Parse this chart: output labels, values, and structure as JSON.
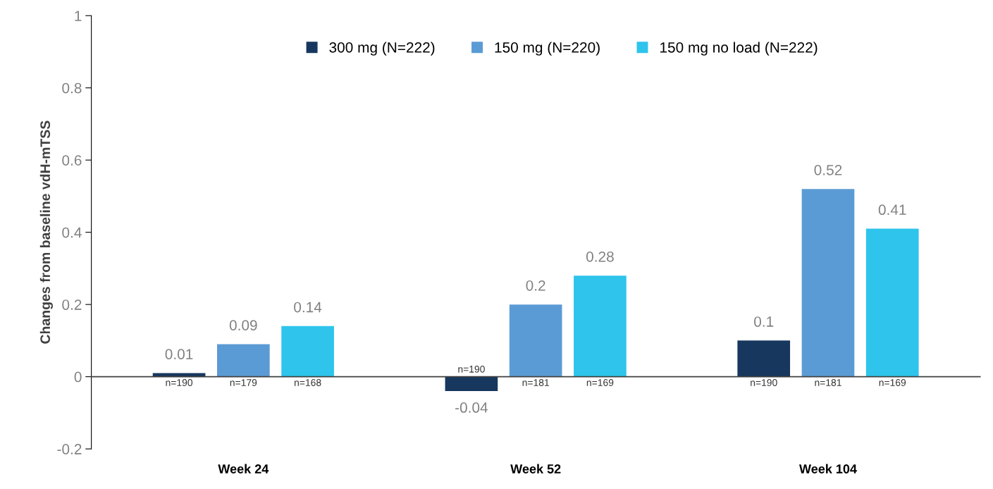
{
  "chart_data": {
    "type": "bar",
    "ylabel": "Changes from baseline vdH-mTSS",
    "categories": [
      "Week 24",
      "Week 52",
      "Week 104"
    ],
    "series": [
      {
        "name": "300 mg (N=222)",
        "color": "#17375e",
        "values": [
          0.01,
          -0.04,
          0.1
        ]
      },
      {
        "name": "150 mg (N=220)",
        "color": "#5b9bd5",
        "values": [
          0.09,
          0.2,
          0.52
        ]
      },
      {
        "name": "150 mg no load (N=222)",
        "color": "#2ec4ec",
        "values": [
          0.14,
          0.28,
          0.41
        ]
      }
    ],
    "ylim": [
      -0.2,
      1
    ],
    "yticks": [
      -0.2,
      0,
      0.2,
      0.4,
      0.6,
      0.8,
      1
    ],
    "data_labels": true,
    "legend": "top",
    "annotations": [
      "n=190",
      "n=179",
      "n=168",
      "n=190",
      "n=181",
      "n=169",
      "n=190",
      "n=181",
      "n=169"
    ]
  }
}
